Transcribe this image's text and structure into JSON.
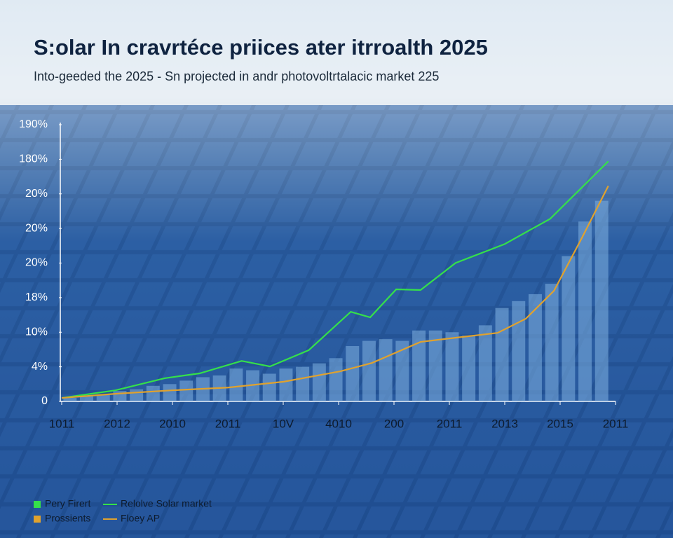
{
  "chart_data": {
    "type": "line",
    "title": "S:olar In cravrtéce priices ater itrroalth 2025",
    "subtitle": "Into-geeded the 2025 - Sn projected in andr photovoltrtalacic market 225",
    "xlim": [
      0,
      10
    ],
    "xticks": [
      {
        "value": 0,
        "label": "1011"
      },
      {
        "value": 1,
        "label": "2012"
      },
      {
        "value": 2,
        "label": "2010"
      },
      {
        "value": 3,
        "label": "2011"
      },
      {
        "value": 4,
        "label": "10V"
      },
      {
        "value": 5,
        "label": "4010"
      },
      {
        "value": 6,
        "label": "200"
      },
      {
        "value": 7,
        "label": "2011"
      },
      {
        "value": 8,
        "label": "2013"
      },
      {
        "value": 9,
        "label": "2015"
      },
      {
        "value": 10,
        "label": "2011"
      }
    ],
    "ylim": [
      0,
      8
    ],
    "yticks": [
      0,
      {
        "value": 1,
        "label": "4%"
      },
      {
        "value": 2,
        "label": "10%"
      },
      {
        "value": 3,
        "label": "18%"
      },
      {
        "value": 4,
        "label": "20%"
      },
      {
        "value": 5,
        "label": "20%"
      },
      {
        "value": 6,
        "label": "20%"
      },
      {
        "value": 7,
        "label": "180%"
      },
      {
        "value": 8,
        "label": "190%"
      }
    ],
    "series": [
      {
        "name": "Relolve Solar market",
        "color": "#35e04a",
        "x": [
          0,
          0.97,
          1.86,
          2.49,
          3.25,
          3.76,
          4.46,
          5.22,
          5.57,
          6.04,
          6.48,
          7.11,
          8.0,
          8.82,
          9.87
        ],
        "values": [
          0.1,
          0.32,
          0.67,
          0.81,
          1.17,
          1.01,
          1.48,
          2.59,
          2.43,
          3.24,
          3.22,
          4.0,
          4.55,
          5.28,
          6.94
        ]
      },
      {
        "name": "Floey AP",
        "color": "#e0a22e",
        "x": [
          0,
          0.97,
          1.99,
          3.0,
          4.01,
          5.03,
          5.6,
          6.48,
          7.11,
          7.87,
          8.38,
          8.89,
          9.39,
          9.87
        ],
        "values": [
          0.1,
          0.22,
          0.32,
          0.4,
          0.57,
          0.87,
          1.11,
          1.72,
          1.84,
          1.98,
          2.39,
          3.2,
          4.72,
          6.23
        ]
      }
    ],
    "bars": {
      "color": "#7fb0e0",
      "x": [
        0.15,
        0.45,
        0.75,
        1.05,
        1.35,
        1.65,
        1.95,
        2.25,
        2.55,
        2.85,
        3.15,
        3.45,
        3.75,
        4.05,
        4.35,
        4.65,
        4.95,
        5.25,
        5.55,
        5.85,
        6.15,
        6.45,
        6.75,
        7.05,
        7.35,
        7.65,
        7.95,
        8.25,
        8.55,
        8.85,
        9.15,
        9.45,
        9.75
      ],
      "values": [
        0.1,
        0.15,
        0.2,
        0.3,
        0.35,
        0.45,
        0.5,
        0.6,
        0.7,
        0.75,
        0.95,
        0.9,
        0.8,
        0.95,
        1.0,
        1.1,
        1.25,
        1.6,
        1.75,
        1.8,
        1.75,
        2.05,
        2.05,
        2.0,
        1.9,
        2.2,
        2.7,
        2.9,
        3.1,
        3.4,
        4.2,
        5.2,
        5.8
      ]
    },
    "legend": {
      "position": "bottom-left",
      "entries": [
        {
          "label": "Pery Firert",
          "color": "#35e04a",
          "symbol": "square"
        },
        {
          "label": "Relolve Solar market",
          "color": "#35e04a",
          "symbol": "line"
        },
        {
          "label": "Prossients",
          "color": "#e0a22e",
          "symbol": "square"
        },
        {
          "label": "Floey AP",
          "color": "#e0a22e",
          "symbol": "line"
        }
      ]
    }
  }
}
